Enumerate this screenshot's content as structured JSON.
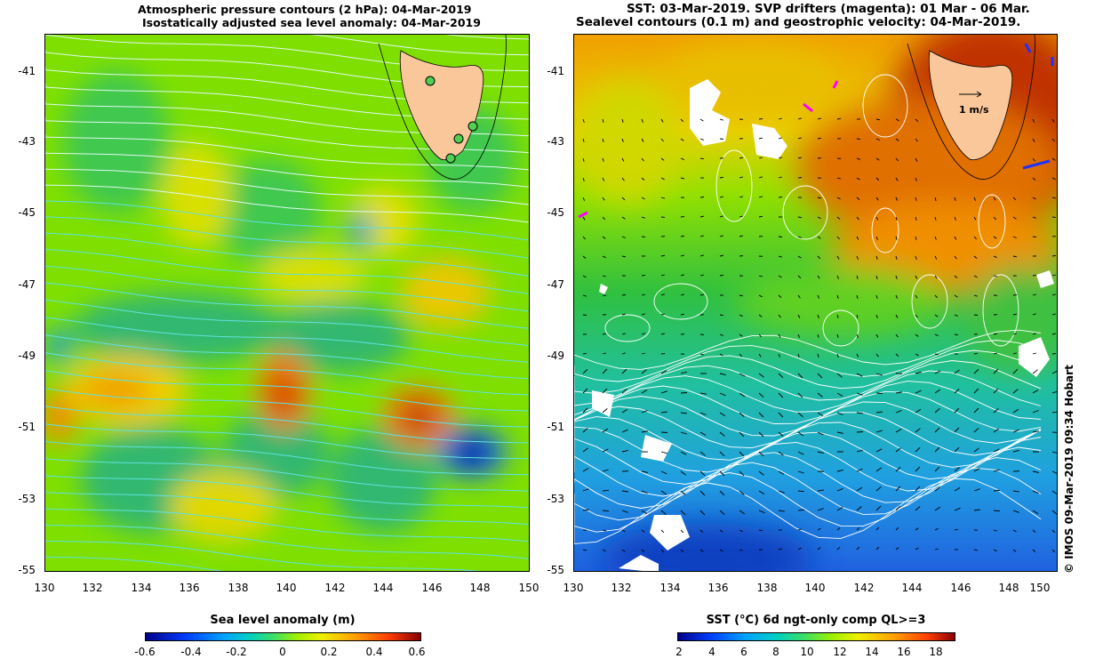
{
  "left_panel": {
    "title_line1": "Atmospheric pressure contours (2 hPa): 04-Mar-2019",
    "title_line2": "Isostatically adjusted sea level anomaly: 04-Mar-2019",
    "y_ticks": [
      "-41",
      "-43",
      "-45",
      "-47",
      "-49",
      "-51",
      "-53",
      "-55"
    ],
    "x_ticks": [
      "130",
      "132",
      "134",
      "136",
      "138",
      "140",
      "142",
      "144",
      "146",
      "148",
      "150"
    ],
    "colorbar_title": "Sea level anomaly (m)",
    "colorbar_ticks": [
      "-0.6",
      "-0.4",
      "-0.2",
      "0",
      "0.2",
      "0.4",
      "0.6"
    ]
  },
  "right_panel": {
    "title_line1": "SST: 03-Mar-2019. SVP drifters (magenta): 01 Mar - 06 Mar.",
    "title_line2": "Sealevel contours (0.1 m) and geostrophic velocity: 04-Mar-2019.",
    "y_ticks": [
      "-41",
      "-43",
      "-45",
      "-47",
      "-49",
      "-51",
      "-53",
      "-55"
    ],
    "x_ticks": [
      "130",
      "132",
      "134",
      "136",
      "138",
      "140",
      "142",
      "144",
      "146",
      "148",
      "150"
    ],
    "velocity_scale_label": "1 m/s",
    "colorbar_title": "SST (°C) 6d ngt-only comp QL>=3",
    "colorbar_ticks": [
      "2",
      "4",
      "6",
      "8",
      "10",
      "12",
      "14",
      "16",
      "18"
    ]
  },
  "credit": "© IMOS 09-Mar-2019 09:34 Hobart",
  "colors": {
    "land": "#f9c79a",
    "sla_low": "#00008b",
    "sla_mid": "#7fe000",
    "sla_high": "#8b0000",
    "sst_cold": "#00008b",
    "sst_warm": "#8b0000",
    "contour_left": "#60e0e0",
    "contour_right": "#ffffff",
    "drifter": "#ff00ff"
  }
}
